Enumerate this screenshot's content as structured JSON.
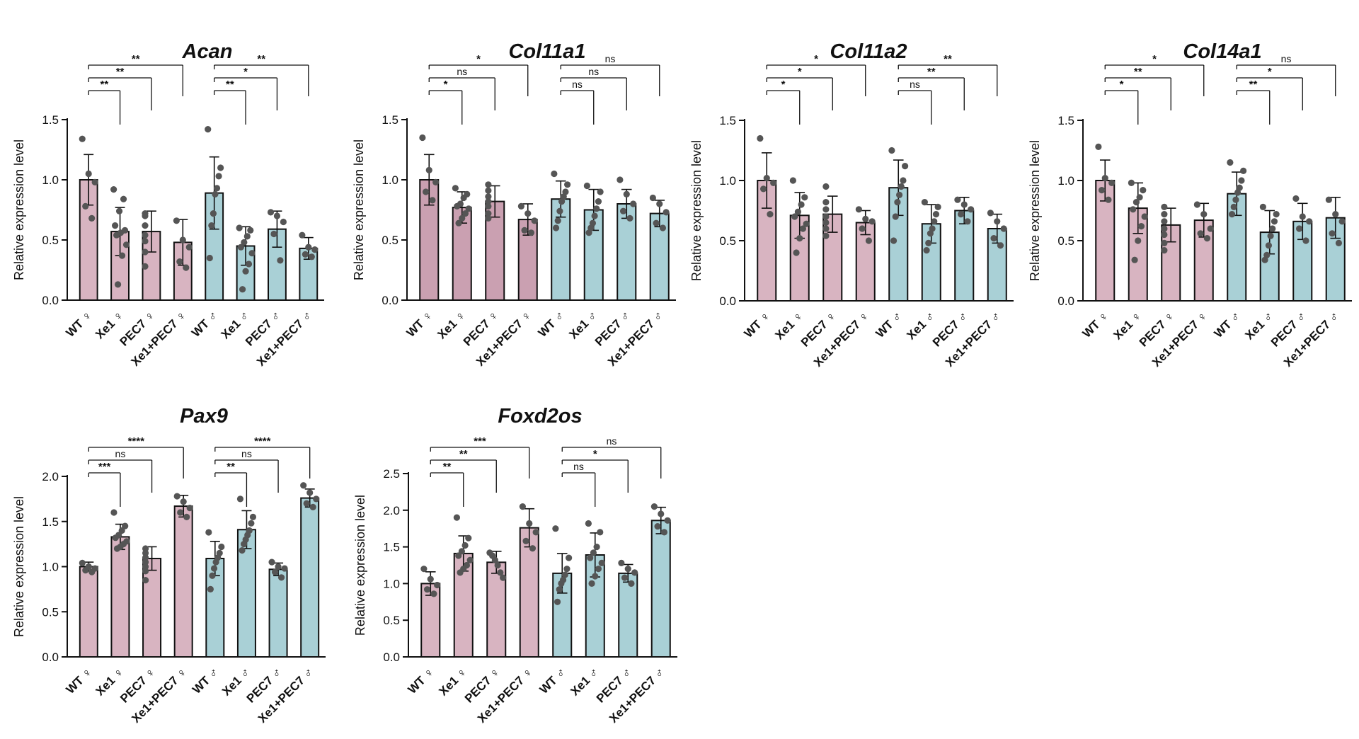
{
  "colors": {
    "female_bar": "#d8b4c1",
    "female_bar_dark": "#caa0b1",
    "male_bar": "#a9d0d6",
    "dot": "#555555",
    "axis": "#111111"
  },
  "chart_data": [
    {
      "type": "bar",
      "title": "Acan",
      "ylabel": "Relative expression level",
      "ylim": [
        0,
        1.5
      ],
      "yticks": [
        "0.0",
        "0.5",
        "1.0",
        "1.5"
      ],
      "categories": [
        "WT ♀",
        "Xe1 ♀",
        "PEC7 ♀",
        "Xe1+PEC7 ♀",
        "WT ♂",
        "Xe1 ♂",
        "PEC7 ♂",
        "Xe1+PEC7 ♂"
      ],
      "values": [
        1.0,
        0.57,
        0.57,
        0.48,
        0.89,
        0.45,
        0.59,
        0.43
      ],
      "errors": [
        0.21,
        0.2,
        0.17,
        0.19,
        0.3,
        0.16,
        0.15,
        0.09
      ],
      "points": [
        [
          1.34,
          1.05,
          0.98,
          0.78,
          0.68
        ],
        [
          0.92,
          0.84,
          0.74,
          0.62,
          0.58,
          0.56,
          0.54,
          0.46,
          0.37,
          0.13
        ],
        [
          0.72,
          0.7,
          0.62,
          0.54,
          0.49,
          0.4,
          0.28
        ],
        [
          0.66,
          0.5,
          0.44,
          0.32,
          0.27
        ],
        [
          1.42,
          1.1,
          1.03,
          0.93,
          0.88,
          0.72,
          0.62,
          0.35
        ],
        [
          0.6,
          0.58,
          0.53,
          0.48,
          0.44,
          0.39,
          0.3,
          0.24,
          0.09
        ],
        [
          0.73,
          0.7,
          0.65,
          0.55,
          0.33
        ],
        [
          0.54,
          0.44,
          0.42,
          0.38,
          0.36
        ]
      ],
      "comparisons": [
        {
          "from": 0,
          "to": 1,
          "label": "**"
        },
        {
          "from": 0,
          "to": 2,
          "label": "**"
        },
        {
          "from": 0,
          "to": 3,
          "label": "**"
        },
        {
          "from": 4,
          "to": 5,
          "label": "**"
        },
        {
          "from": 4,
          "to": 6,
          "label": "*"
        },
        {
          "from": 4,
          "to": 7,
          "label": "**"
        }
      ]
    },
    {
      "type": "bar",
      "title": "Col11a1",
      "ylabel": "Relative expression level",
      "ylim": [
        0,
        1.5
      ],
      "yticks": [
        "0.0",
        "0.5",
        "1.0",
        "1.5"
      ],
      "categories": [
        "WT ♀",
        "Xe1 ♀",
        "PEC7 ♀",
        "Xe1+PEC7 ♀",
        "WT ♂",
        "Xe1 ♂",
        "PEC7 ♂",
        "Xe1+PEC7 ♂"
      ],
      "values": [
        1.0,
        0.77,
        0.82,
        0.67,
        0.84,
        0.75,
        0.8,
        0.72
      ],
      "errors": [
        0.21,
        0.13,
        0.13,
        0.13,
        0.15,
        0.17,
        0.12,
        0.11
      ],
      "points": [
        [
          1.35,
          1.08,
          0.98,
          0.9,
          0.83
        ],
        [
          0.93,
          0.88,
          0.85,
          0.8,
          0.78,
          0.76,
          0.72,
          0.68,
          0.64
        ],
        [
          0.96,
          0.91,
          0.86,
          0.82,
          0.78,
          0.72,
          0.68
        ],
        [
          0.78,
          0.72,
          0.66,
          0.58,
          0.56
        ],
        [
          1.05,
          0.96,
          0.9,
          0.86,
          0.82,
          0.74,
          0.66,
          0.6
        ],
        [
          0.95,
          0.9,
          0.82,
          0.76,
          0.7,
          0.64,
          0.6,
          0.56
        ],
        [
          1.0,
          0.88,
          0.8,
          0.74,
          0.68
        ],
        [
          0.85,
          0.8,
          0.73,
          0.64,
          0.6
        ]
      ],
      "comparisons": [
        {
          "from": 0,
          "to": 1,
          "label": "*"
        },
        {
          "from": 0,
          "to": 2,
          "label": "ns"
        },
        {
          "from": 0,
          "to": 3,
          "label": "*"
        },
        {
          "from": 4,
          "to": 5,
          "label": "ns"
        },
        {
          "from": 4,
          "to": 6,
          "label": "ns"
        },
        {
          "from": 4,
          "to": 7,
          "label": "ns"
        }
      ]
    },
    {
      "type": "bar",
      "title": "Col11a2",
      "ylabel": "Relative expression level",
      "ylim": [
        0,
        1.5
      ],
      "yticks": [
        "0.0",
        "0.5",
        "1.0",
        "1.5"
      ],
      "categories": [
        "WT ♀",
        "Xe1 ♀",
        "PEC7 ♀",
        "Xe1+PEC7 ♀",
        "WT ♂",
        "Xe1 ♂",
        "PEC7 ♂",
        "Xe1+PEC7 ♂"
      ],
      "values": [
        1.0,
        0.71,
        0.72,
        0.65,
        0.94,
        0.64,
        0.75,
        0.6
      ],
      "errors": [
        0.23,
        0.19,
        0.15,
        0.1,
        0.23,
        0.16,
        0.11,
        0.12
      ],
      "points": [
        [
          1.35,
          1.02,
          0.98,
          0.93,
          0.72
        ],
        [
          1.0,
          0.86,
          0.8,
          0.74,
          0.7,
          0.64,
          0.6,
          0.52,
          0.4
        ],
        [
          0.95,
          0.82,
          0.76,
          0.7,
          0.65,
          0.6,
          0.54
        ],
        [
          0.76,
          0.68,
          0.66,
          0.6,
          0.5
        ],
        [
          1.25,
          1.12,
          1.0,
          0.95,
          0.88,
          0.82,
          0.7,
          0.5
        ],
        [
          0.82,
          0.78,
          0.72,
          0.66,
          0.6,
          0.56,
          0.48,
          0.42
        ],
        [
          0.84,
          0.8,
          0.76,
          0.72,
          0.66
        ],
        [
          0.73,
          0.66,
          0.6,
          0.52,
          0.46
        ]
      ],
      "comparisons": [
        {
          "from": 0,
          "to": 1,
          "label": "*"
        },
        {
          "from": 0,
          "to": 2,
          "label": "*"
        },
        {
          "from": 0,
          "to": 3,
          "label": "*"
        },
        {
          "from": 4,
          "to": 5,
          "label": "ns"
        },
        {
          "from": 4,
          "to": 6,
          "label": "**"
        },
        {
          "from": 4,
          "to": 7,
          "label": "**"
        }
      ]
    },
    {
      "type": "bar",
      "title": "Col14a1",
      "ylabel": "Relative expression level",
      "ylim": [
        0,
        1.5
      ],
      "yticks": [
        "0.0",
        "0.5",
        "1.0",
        "1.5"
      ],
      "categories": [
        "WT ♀",
        "Xe1 ♀",
        "PEC7 ♀",
        "Xe1+PEC7 ♀",
        "WT ♂",
        "Xe1 ♂",
        "PEC7 ♂",
        "Xe1+PEC7 ♂"
      ],
      "values": [
        1.0,
        0.77,
        0.63,
        0.67,
        0.89,
        0.57,
        0.66,
        0.69
      ],
      "errors": [
        0.17,
        0.21,
        0.14,
        0.14,
        0.18,
        0.18,
        0.15,
        0.17
      ],
      "points": [
        [
          1.28,
          1.02,
          0.98,
          0.92,
          0.84
        ],
        [
          0.98,
          0.92,
          0.86,
          0.82,
          0.76,
          0.7,
          0.62,
          0.5,
          0.34
        ],
        [
          0.78,
          0.72,
          0.66,
          0.6,
          0.55,
          0.48,
          0.42
        ],
        [
          0.8,
          0.72,
          0.6,
          0.56,
          0.52
        ],
        [
          1.15,
          1.08,
          1.0,
          0.94,
          0.9,
          0.84,
          0.78,
          0.72
        ],
        [
          0.78,
          0.72,
          0.66,
          0.6,
          0.54,
          0.46,
          0.38,
          0.34
        ],
        [
          0.85,
          0.7,
          0.66,
          0.6,
          0.5
        ],
        [
          0.84,
          0.72,
          0.66,
          0.56,
          0.48
        ]
      ],
      "comparisons": [
        {
          "from": 0,
          "to": 1,
          "label": "*"
        },
        {
          "from": 0,
          "to": 2,
          "label": "**"
        },
        {
          "from": 0,
          "to": 3,
          "label": "*"
        },
        {
          "from": 4,
          "to": 5,
          "label": "**"
        },
        {
          "from": 4,
          "to": 6,
          "label": "*"
        },
        {
          "from": 4,
          "to": 7,
          "label": "ns"
        }
      ]
    },
    {
      "type": "bar",
      "title": "Pax9",
      "ylabel": "Relative expression level",
      "ylim": [
        0,
        2.0
      ],
      "yticks": [
        "0.0",
        "0.5",
        "1.0",
        "1.5",
        "2.0"
      ],
      "categories": [
        "WT ♀",
        "Xe1 ♀",
        "PEC7 ♀",
        "Xe1+PEC7 ♀",
        "WT ♂",
        "Xe1 ♂",
        "PEC7 ♂",
        "Xe1+PEC7 ♂"
      ],
      "values": [
        1.0,
        1.33,
        1.09,
        1.67,
        1.09,
        1.41,
        0.97,
        1.76
      ],
      "errors": [
        0.05,
        0.14,
        0.13,
        0.12,
        0.19,
        0.21,
        0.07,
        0.1
      ],
      "points": [
        [
          1.04,
          1.0,
          0.98,
          0.96,
          0.94
        ],
        [
          1.6,
          1.45,
          1.4,
          1.35,
          1.32,
          1.28,
          1.25,
          1.22,
          1.2
        ],
        [
          1.2,
          1.15,
          1.1,
          1.05,
          1.0,
          0.95,
          0.85
        ],
        [
          1.78,
          1.72,
          1.65,
          1.6,
          1.55
        ],
        [
          1.38,
          1.22,
          1.15,
          1.1,
          1.05,
          0.98,
          0.9,
          0.75
        ],
        [
          1.75,
          1.55,
          1.48,
          1.4,
          1.35,
          1.3,
          1.25,
          1.18
        ],
        [
          1.05,
          1.0,
          0.98,
          0.94,
          0.88
        ],
        [
          1.9,
          1.82,
          1.75,
          1.7,
          1.66
        ]
      ],
      "comparisons": [
        {
          "from": 0,
          "to": 1,
          "label": "***"
        },
        {
          "from": 0,
          "to": 2,
          "label": "ns"
        },
        {
          "from": 0,
          "to": 3,
          "label": "****"
        },
        {
          "from": 4,
          "to": 5,
          "label": "**"
        },
        {
          "from": 4,
          "to": 6,
          "label": "ns"
        },
        {
          "from": 4,
          "to": 7,
          "label": "****"
        }
      ]
    },
    {
      "type": "bar",
      "title": "Foxd2os",
      "ylabel": "Relative expression level",
      "ylim": [
        0,
        2.5
      ],
      "yticks": [
        "0.0",
        "0.5",
        "1.0",
        "1.5",
        "2.0",
        "2.5"
      ],
      "categories": [
        "WT ♀",
        "Xe1 ♀",
        "PEC7 ♀",
        "Xe1+PEC7 ♀",
        "WT ♂",
        "Xe1 ♂",
        "PEC7 ♂",
        "Xe1+PEC7 ♂"
      ],
      "values": [
        1.0,
        1.41,
        1.29,
        1.76,
        1.14,
        1.39,
        1.14,
        1.86
      ],
      "errors": [
        0.16,
        0.24,
        0.15,
        0.26,
        0.27,
        0.3,
        0.12,
        0.18
      ],
      "points": [
        [
          1.2,
          1.06,
          0.98,
          0.92,
          0.86
        ],
        [
          1.9,
          1.62,
          1.52,
          1.44,
          1.38,
          1.32,
          1.25,
          1.2,
          1.15
        ],
        [
          1.42,
          1.38,
          1.32,
          1.25,
          1.15,
          1.08
        ],
        [
          2.05,
          1.82,
          1.7,
          1.58,
          1.48
        ],
        [
          1.75,
          1.35,
          1.2,
          1.12,
          1.05,
          1.0,
          0.92,
          0.75
        ],
        [
          1.82,
          1.7,
          1.5,
          1.42,
          1.35,
          1.28,
          1.2,
          1.1,
          1.0
        ],
        [
          1.28,
          1.2,
          1.15,
          1.08,
          1.0
        ],
        [
          2.05,
          1.95,
          1.86,
          1.78,
          1.7
        ]
      ],
      "comparisons": [
        {
          "from": 0,
          "to": 1,
          "label": "**"
        },
        {
          "from": 0,
          "to": 2,
          "label": "**"
        },
        {
          "from": 0,
          "to": 3,
          "label": "***"
        },
        {
          "from": 4,
          "to": 5,
          "label": "ns"
        },
        {
          "from": 4,
          "to": 6,
          "label": "*"
        },
        {
          "from": 4,
          "to": 7,
          "label": "ns"
        }
      ]
    }
  ]
}
